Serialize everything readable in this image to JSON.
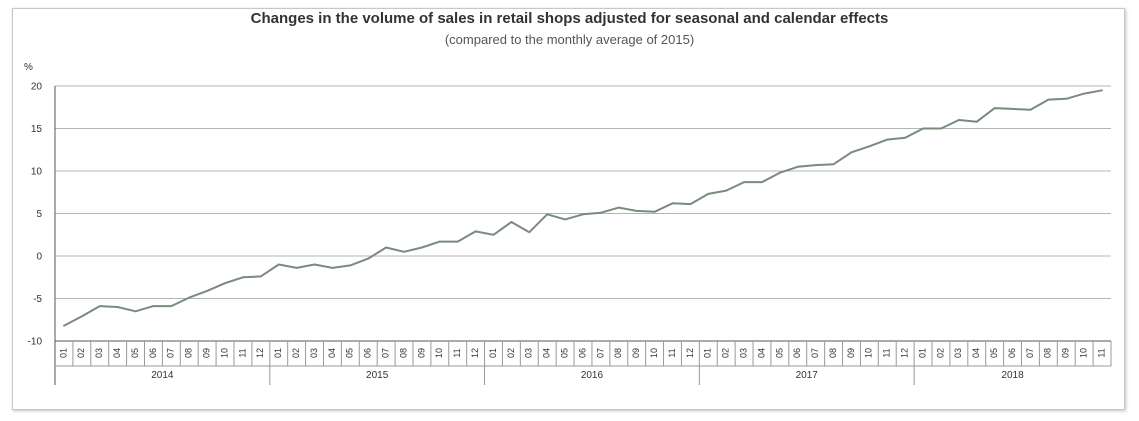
{
  "chart_data": {
    "type": "line",
    "title": "Changes in the volume of sales in retail shops adjusted for seasonal and calendar effects",
    "subtitle": "(compared to the monthly average of 2015)",
    "ylabel": "%",
    "ylim": [
      -10,
      20
    ],
    "yticks": [
      20,
      15,
      10,
      5,
      0,
      -5,
      -10
    ],
    "grid": true,
    "line_color": "#7a8b7a",
    "years": [
      {
        "label": "2014",
        "months": [
          "01",
          "02",
          "03",
          "04",
          "05",
          "06",
          "07",
          "08",
          "09",
          "10",
          "11",
          "12"
        ]
      },
      {
        "label": "2015",
        "months": [
          "01",
          "02",
          "03",
          "04",
          "05",
          "06",
          "07",
          "08",
          "09",
          "10",
          "11",
          "12"
        ]
      },
      {
        "label": "2016",
        "months": [
          "01",
          "02",
          "03",
          "04",
          "05",
          "06",
          "07",
          "08",
          "09",
          "10",
          "11",
          "12"
        ]
      },
      {
        "label": "2017",
        "months": [
          "01",
          "02",
          "03",
          "04",
          "05",
          "06",
          "07",
          "08",
          "09",
          "10",
          "11",
          "12"
        ]
      },
      {
        "label": "2018",
        "months": [
          "01",
          "02",
          "03",
          "04",
          "05",
          "06",
          "07",
          "08",
          "09",
          "10",
          "11"
        ]
      }
    ],
    "values": [
      -8.2,
      -7.1,
      -5.9,
      -6.0,
      -6.5,
      -5.9,
      -5.9,
      -4.9,
      -4.1,
      -3.2,
      -2.5,
      -2.4,
      -1.0,
      -1.4,
      -1.0,
      -1.4,
      -1.1,
      -0.3,
      1.0,
      0.5,
      1.0,
      1.7,
      1.7,
      2.9,
      2.5,
      4.0,
      2.8,
      4.9,
      4.3,
      4.9,
      5.1,
      5.7,
      5.3,
      5.2,
      6.2,
      6.1,
      7.3,
      7.7,
      8.7,
      8.7,
      9.8,
      10.5,
      10.7,
      10.8,
      12.2,
      12.9,
      13.7,
      13.9,
      15.0,
      15.0,
      16.0,
      15.8,
      17.4,
      17.3,
      17.2,
      18.4,
      18.5,
      19.1,
      19.5
    ]
  }
}
